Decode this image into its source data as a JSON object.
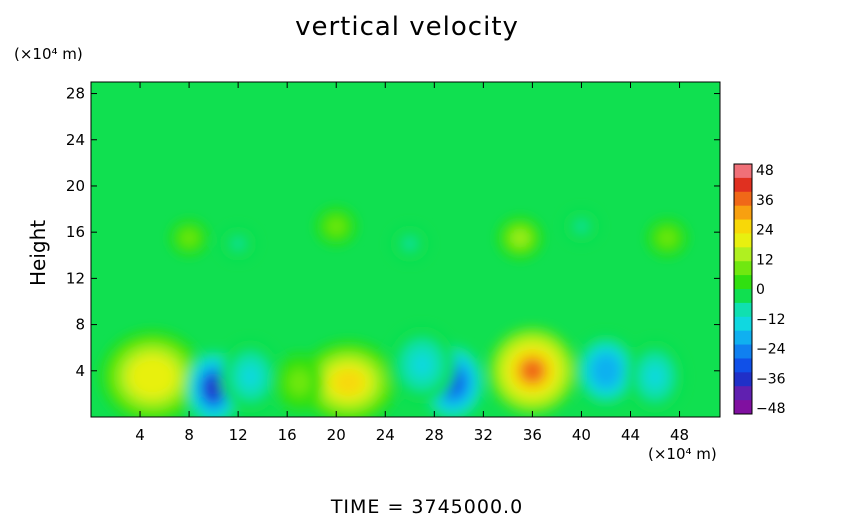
{
  "chart_data": {
    "type": "heatmap",
    "title": "vertical velocity",
    "ylabel": "Height",
    "yunit": "(×10⁴ m)",
    "xunit": "(×10⁴ m)",
    "footer": "TIME  =  3745000.0",
    "x_ticks": [
      4,
      8,
      12,
      16,
      20,
      24,
      28,
      32,
      36,
      40,
      44,
      48
    ],
    "y_ticks": [
      4,
      8,
      12,
      16,
      20,
      24,
      28
    ],
    "xlim": [
      0,
      51.3
    ],
    "ylim": [
      0,
      29
    ],
    "colorbar": {
      "ticks": [
        48,
        36,
        24,
        12,
        0,
        -12,
        -24,
        -36,
        -48
      ],
      "range": [
        -48,
        48
      ],
      "colors": [
        "#f07078",
        "#e03020",
        "#f06818",
        "#f8a010",
        "#f8d808",
        "#e8f010",
        "#b0f020",
        "#70e810",
        "#30e010",
        "#10e050",
        "#10e0b0",
        "#10d8e0",
        "#10b0f0",
        "#1080f0",
        "#1050e8",
        "#2030c8",
        "#6020b0",
        "#8010a0"
      ]
    },
    "cells": [
      {
        "x": 5,
        "y": 3.5,
        "v": 22,
        "sx": 4.2,
        "sy": 4.0
      },
      {
        "x": 10,
        "y": 2.5,
        "v": -36,
        "sx": 2.2,
        "sy": 3.2
      },
      {
        "x": 13,
        "y": 3.5,
        "v": -14,
        "sx": 2.5,
        "sy": 3.2
      },
      {
        "x": 21,
        "y": 3.0,
        "v": 26,
        "sx": 4.0,
        "sy": 3.6
      },
      {
        "x": 29.5,
        "y": 3.0,
        "v": -32,
        "sx": 2.5,
        "sy": 3.2
      },
      {
        "x": 27,
        "y": 4.5,
        "v": -14,
        "sx": 2.8,
        "sy": 3.4
      },
      {
        "x": 36,
        "y": 4.0,
        "v": 34,
        "sx": 3.6,
        "sy": 3.8
      },
      {
        "x": 42,
        "y": 4.0,
        "v": -22,
        "sx": 2.6,
        "sy": 3.2
      },
      {
        "x": 46,
        "y": 3.5,
        "v": -14,
        "sx": 2.4,
        "sy": 3.2
      },
      {
        "x": 17,
        "y": 3.0,
        "v": 8,
        "sx": 2.0,
        "sy": 2.5
      },
      {
        "x": 8,
        "y": 15.5,
        "v": 8,
        "sx": 1.5,
        "sy": 1.5
      },
      {
        "x": 12,
        "y": 15.0,
        "v": -6,
        "sx": 1.5,
        "sy": 1.5
      },
      {
        "x": 20,
        "y": 16.5,
        "v": 8,
        "sx": 1.6,
        "sy": 1.6
      },
      {
        "x": 26,
        "y": 15.0,
        "v": -6,
        "sx": 1.6,
        "sy": 1.6
      },
      {
        "x": 35,
        "y": 15.5,
        "v": 12,
        "sx": 1.8,
        "sy": 1.8
      },
      {
        "x": 40,
        "y": 16.5,
        "v": -6,
        "sx": 1.5,
        "sy": 1.5
      },
      {
        "x": 47,
        "y": 15.5,
        "v": 8,
        "sx": 1.6,
        "sy": 1.6
      }
    ]
  }
}
